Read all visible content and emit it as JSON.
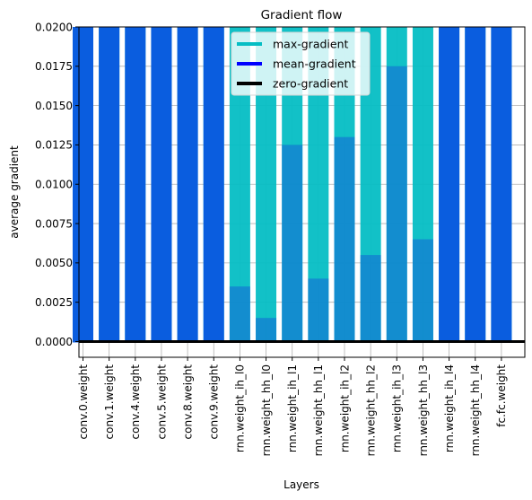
{
  "chart_data": {
    "type": "bar",
    "title": "Gradient flow",
    "xlabel": "Layers",
    "ylabel": "average gradient",
    "ylim": [
      -0.001,
      0.02
    ],
    "yticks": [
      "0.0000",
      "0.0025",
      "0.0050",
      "0.0075",
      "0.0100",
      "0.0125",
      "0.0150",
      "0.0175",
      "0.0200"
    ],
    "grid": true,
    "legend_position": "top-center",
    "categories": [
      "conv.0.weight",
      "conv.1.weight",
      "conv.4.weight",
      "conv.5.weight",
      "conv.8.weight",
      "conv.9.weight",
      "rnn.weight_ih_l0",
      "rnn.weight_hh_l0",
      "rnn.weight_ih_l1",
      "rnn.weight_hh_l1",
      "rnn.weight_ih_l2",
      "rnn.weight_hh_l2",
      "rnn.weight_ih_l3",
      "rnn.weight_hh_l3",
      "rnn.weight_ih_l4",
      "rnn.weight_hh_l4",
      "fc.fc.weight"
    ],
    "series": [
      {
        "name": "max-gradient",
        "color": "#00c8c8",
        "values": [
          0.02,
          0.02,
          0.02,
          0.02,
          0.02,
          0.02,
          0.02,
          0.02,
          0.02,
          0.02,
          0.02,
          0.02,
          0.02,
          0.02,
          0.02,
          0.02,
          0.02
        ]
      },
      {
        "name": "mean-gradient",
        "color": "#0000ff",
        "values": [
          0.02,
          0.02,
          0.02,
          0.02,
          0.02,
          0.02,
          0.0035,
          0.0015,
          0.0125,
          0.004,
          0.013,
          0.0055,
          0.0175,
          0.0065,
          0.02,
          0.02,
          0.02
        ]
      },
      {
        "name": "zero-gradient",
        "color": "#000000",
        "values": [
          0,
          0,
          0,
          0,
          0,
          0,
          0,
          0,
          0,
          0,
          0,
          0,
          0,
          0,
          0,
          0,
          0
        ]
      }
    ]
  }
}
